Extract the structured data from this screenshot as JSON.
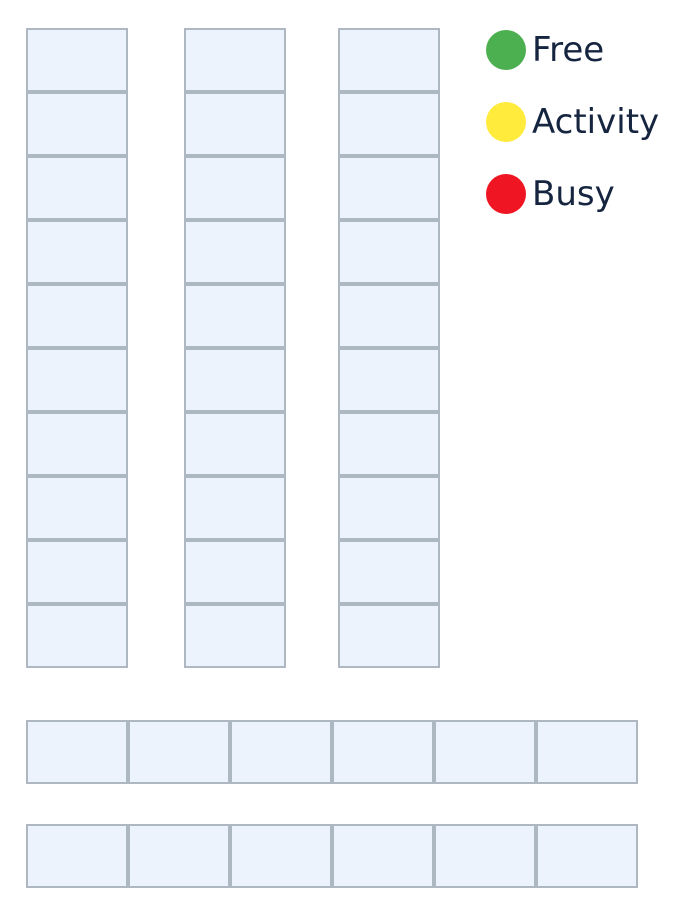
{
  "legend": {
    "items": [
      {
        "label": "Free",
        "color": "#4caf50"
      },
      {
        "label": "Activity",
        "color": "#ffeb3b"
      },
      {
        "label": "Busy",
        "color": "#f01522"
      }
    ]
  },
  "grid": {
    "cell_fill": "#edf3fc",
    "cell_border": "#aeb8c3",
    "vertical_columns": 3,
    "cells_per_column": 10,
    "horizontal_rows": 2,
    "cells_per_row": 6
  }
}
